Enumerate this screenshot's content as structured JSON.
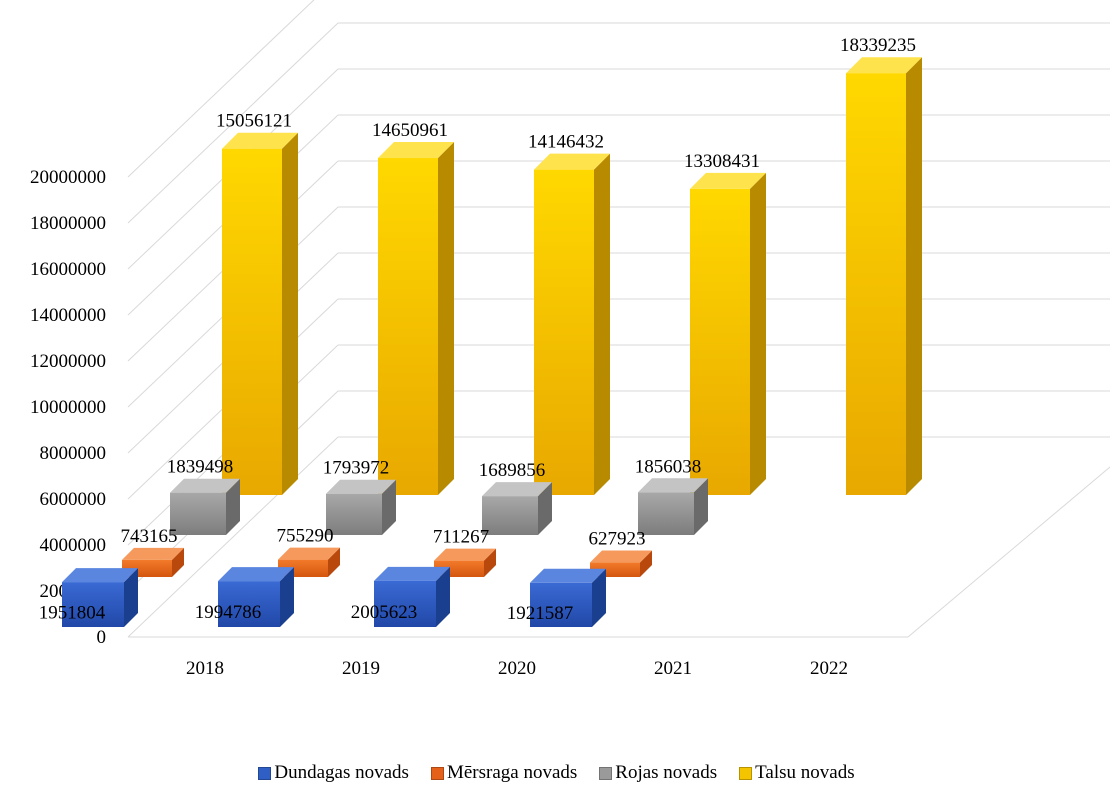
{
  "chart_data": {
    "type": "bar",
    "style": "3d-clustered-depth",
    "categories": [
      "2018",
      "2019",
      "2020",
      "2021",
      "2022"
    ],
    "series": [
      {
        "name": "Dundagas novads",
        "color": "#2f5fc4",
        "values": [
          1951804,
          1994786,
          2005623,
          1921587,
          null
        ]
      },
      {
        "name": "Mērsraga novads",
        "color": "#e5611a",
        "values": [
          743165,
          755290,
          711267,
          627923,
          null
        ]
      },
      {
        "name": "Rojas novads",
        "color": "#9a9a9a",
        "values": [
          1839498,
          1793972,
          1689856,
          1856038,
          null
        ]
      },
      {
        "name": "Talsu novads",
        "color": "#f5c400",
        "values": [
          15056121,
          14650961,
          14146432,
          13308431,
          18339235
        ]
      }
    ],
    "y_ticks": [
      "0",
      "2000000",
      "4000000",
      "6000000",
      "8000000",
      "10000000",
      "12000000",
      "14000000",
      "16000000",
      "18000000",
      "20000000"
    ],
    "ylim": [
      0,
      20000000
    ],
    "grid": true,
    "legend": "bottom"
  }
}
